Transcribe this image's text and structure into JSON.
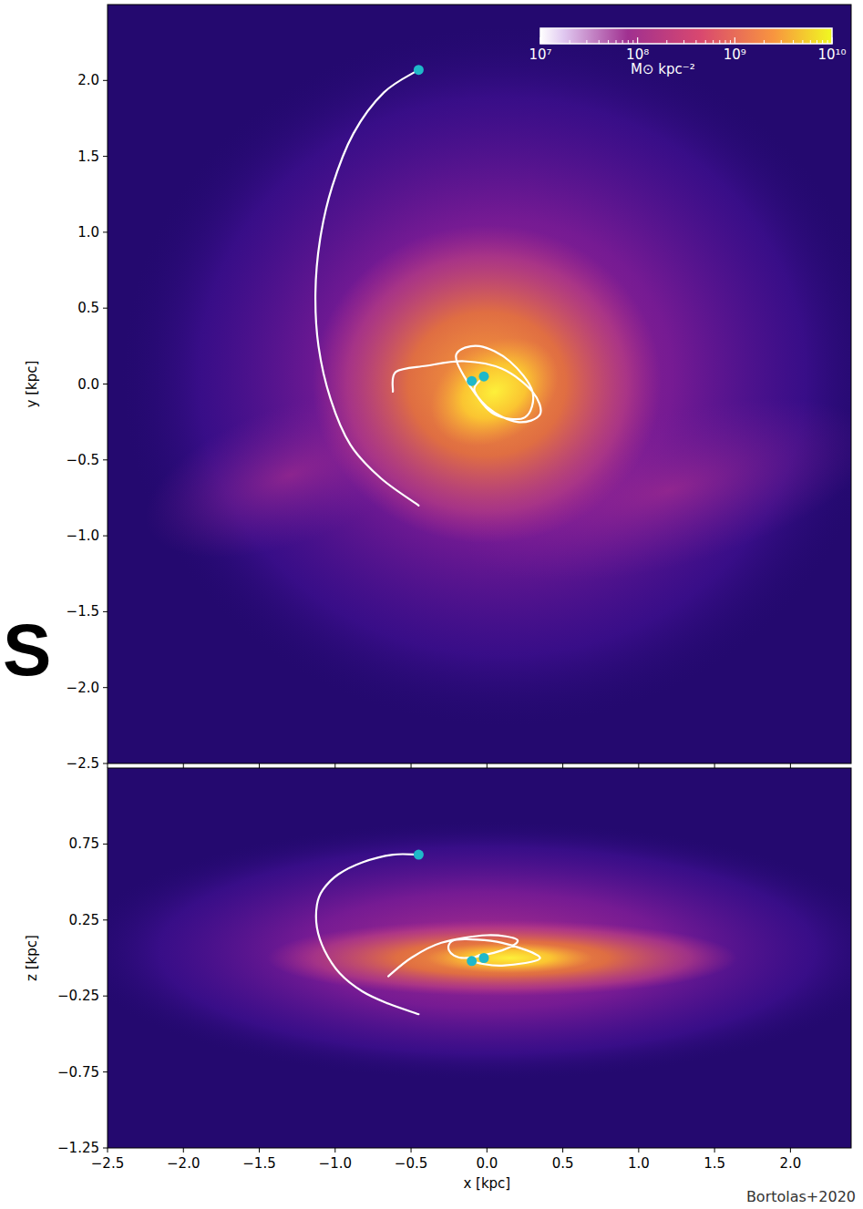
{
  "chart_data": [
    {
      "type": "line",
      "ylabel": "y [kpc]",
      "xlim": [
        -2.5,
        2.4
      ],
      "ylim": [
        -2.5,
        2.5
      ],
      "xticks": [
        -2.5,
        -2,
        -1.5,
        -1,
        -0.5,
        0,
        0.5,
        1,
        1.5,
        2
      ],
      "yticks": [
        {
          "value": 2,
          "label": "2.0"
        },
        {
          "value": 1.5,
          "label": "1.5"
        },
        {
          "value": 1,
          "label": "1.0"
        },
        {
          "value": 0.5,
          "label": "0.5"
        },
        {
          "value": 0,
          "label": "0.0"
        },
        {
          "value": -0.5,
          "label": "−0.5"
        },
        {
          "value": -1,
          "label": "−1.0"
        },
        {
          "value": -1.5,
          "label": "−1.5"
        },
        {
          "value": -2,
          "label": "−2.0"
        },
        {
          "value": -2.5,
          "label": "−2.5"
        }
      ],
      "tick_labels": "y",
      "colorbar": {
        "range": [
          10000000,
          10000000000
        ],
        "log": true,
        "label": "M⊙ kpc⁻²",
        "ticks": [
          {
            "value": 10000000,
            "label": "10⁷"
          },
          {
            "value": 100000000,
            "label": "10⁸"
          },
          {
            "value": 1000000000,
            "label": "10⁹"
          },
          {
            "value": 10000000000,
            "label": "10¹⁰"
          }
        ]
      },
      "annotations": [
        "S"
      ],
      "series": [
        {
          "type": "line",
          "color": "#ffffff",
          "line_style": "solid",
          "x": [
            -0.45,
            -0.68,
            -0.88,
            -1.02,
            -1.1,
            -1.13,
            -1.11,
            -1.03,
            -0.9,
            -0.7,
            -0.45
          ],
          "values": [
            2.07,
            1.92,
            1.65,
            1.3,
            0.95,
            0.6,
            0.25,
            -0.1,
            -0.4,
            -0.62,
            -0.8
          ]
        },
        {
          "type": "line",
          "color": "#ffffff",
          "line_style": "solid",
          "x": [
            -0.62,
            -0.6,
            -0.4,
            -0.15,
            0.1,
            0.3,
            0.35,
            0.2,
            0.0,
            -0.15,
            -0.2,
            -0.05,
            0.15,
            0.3,
            0.25,
            0.05,
            -0.08,
            -0.05
          ],
          "values": [
            -0.05,
            0.08,
            0.12,
            0.15,
            0.1,
            -0.05,
            -0.2,
            -0.25,
            -0.15,
            0.05,
            0.2,
            0.25,
            0.15,
            -0.05,
            -0.22,
            -0.2,
            -0.05,
            0.02
          ]
        },
        {
          "type": "scatter",
          "color": "#1fb8c9",
          "marker": "circle",
          "x": [
            -0.45,
            -0.1,
            -0.02
          ],
          "values": [
            2.07,
            0.02,
            0.05
          ]
        }
      ]
    },
    {
      "type": "line",
      "xlabel": "x [kpc]",
      "ylabel": "z [kpc]",
      "xlim": [
        -2.5,
        2.4
      ],
      "ylim": [
        -1.25,
        1.25
      ],
      "xticks": [
        {
          "value": -2.5,
          "label": "−2.5"
        },
        {
          "value": -2,
          "label": "−2.0"
        },
        {
          "value": -1.5,
          "label": "−1.5"
        },
        {
          "value": -1,
          "label": "−1.0"
        },
        {
          "value": -0.5,
          "label": "−0.5"
        },
        {
          "value": 0,
          "label": "0.0"
        },
        {
          "value": 0.5,
          "label": "0.5"
        },
        {
          "value": 1,
          "label": "1.0"
        },
        {
          "value": 1.5,
          "label": "1.5"
        },
        {
          "value": 2,
          "label": "2.0"
        }
      ],
      "yticks": [
        {
          "value": 0.75,
          "label": "0.75"
        },
        {
          "value": 0.25,
          "label": "0.25"
        },
        {
          "value": -0.25,
          "label": "−0.25"
        },
        {
          "value": -0.75,
          "label": "−0.75"
        },
        {
          "value": -1.25,
          "label": "−1.25"
        }
      ],
      "annotations": [
        "Bortolas+2020"
      ],
      "series": [
        {
          "type": "line",
          "color": "#ffffff",
          "line_style": "solid",
          "x": [
            -0.45,
            -0.62,
            -0.82,
            -0.98,
            -1.08,
            -1.12,
            -1.12,
            -1.07,
            -0.97,
            -0.82,
            -0.65,
            -0.45
          ],
          "values": [
            0.68,
            0.68,
            0.63,
            0.55,
            0.45,
            0.35,
            0.2,
            0.05,
            -0.1,
            -0.22,
            -0.3,
            -0.37
          ]
        },
        {
          "type": "line",
          "color": "#ffffff",
          "line_style": "solid",
          "x": [
            -0.65,
            -0.5,
            -0.3,
            0.0,
            0.2,
            0.1,
            -0.15,
            -0.25,
            -0.2,
            0.1,
            0.35,
            0.1,
            -0.1,
            -0.05
          ],
          "values": [
            -0.12,
            0.0,
            0.1,
            0.15,
            0.12,
            0.05,
            0.0,
            0.05,
            0.12,
            0.1,
            0.0,
            -0.05,
            -0.02,
            0.02
          ]
        },
        {
          "type": "scatter",
          "color": "#1fb8c9",
          "marker": "circle",
          "x": [
            -0.45,
            -0.1,
            -0.02
          ],
          "values": [
            0.68,
            -0.02,
            0.0
          ]
        }
      ]
    }
  ]
}
